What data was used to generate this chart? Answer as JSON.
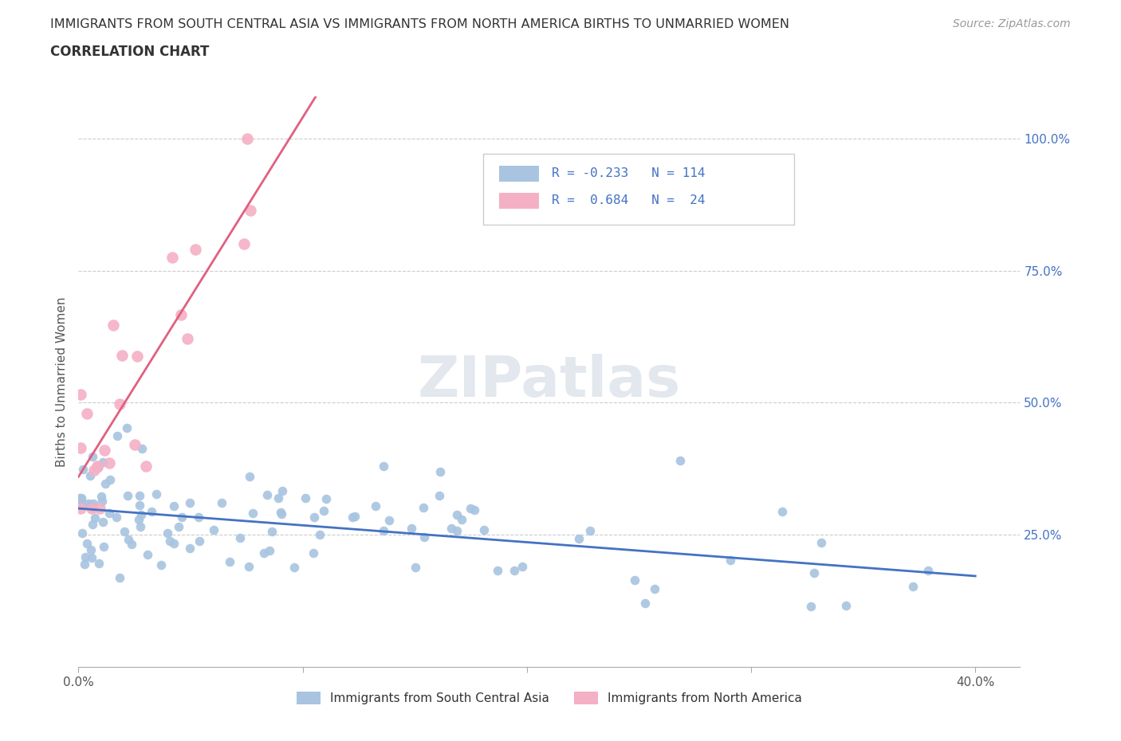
{
  "title_line1": "IMMIGRANTS FROM SOUTH CENTRAL ASIA VS IMMIGRANTS FROM NORTH AMERICA BIRTHS TO UNMARRIED WOMEN",
  "title_line2": "CORRELATION CHART",
  "source_text": "Source: ZipAtlas.com",
  "ylabel": "Births to Unmarried Women",
  "xlim": [
    0.0,
    0.42
  ],
  "ylim": [
    0.0,
    1.08
  ],
  "ytick_positions": [
    0.25,
    0.5,
    0.75,
    1.0
  ],
  "ytick_labels": [
    "25.0%",
    "50.0%",
    "75.0%",
    "100.0%"
  ],
  "color_blue": "#a8c4e0",
  "color_pink": "#f4b0c4",
  "line_blue": "#4472c4",
  "line_pink": "#e06080",
  "a_blue": 0.3,
  "b_blue": -0.32,
  "a_pink": 0.36,
  "b_pink": 6.8,
  "legend_text1": "R = -0.233   N = 114",
  "legend_text2": "R =  0.684   N =  24"
}
